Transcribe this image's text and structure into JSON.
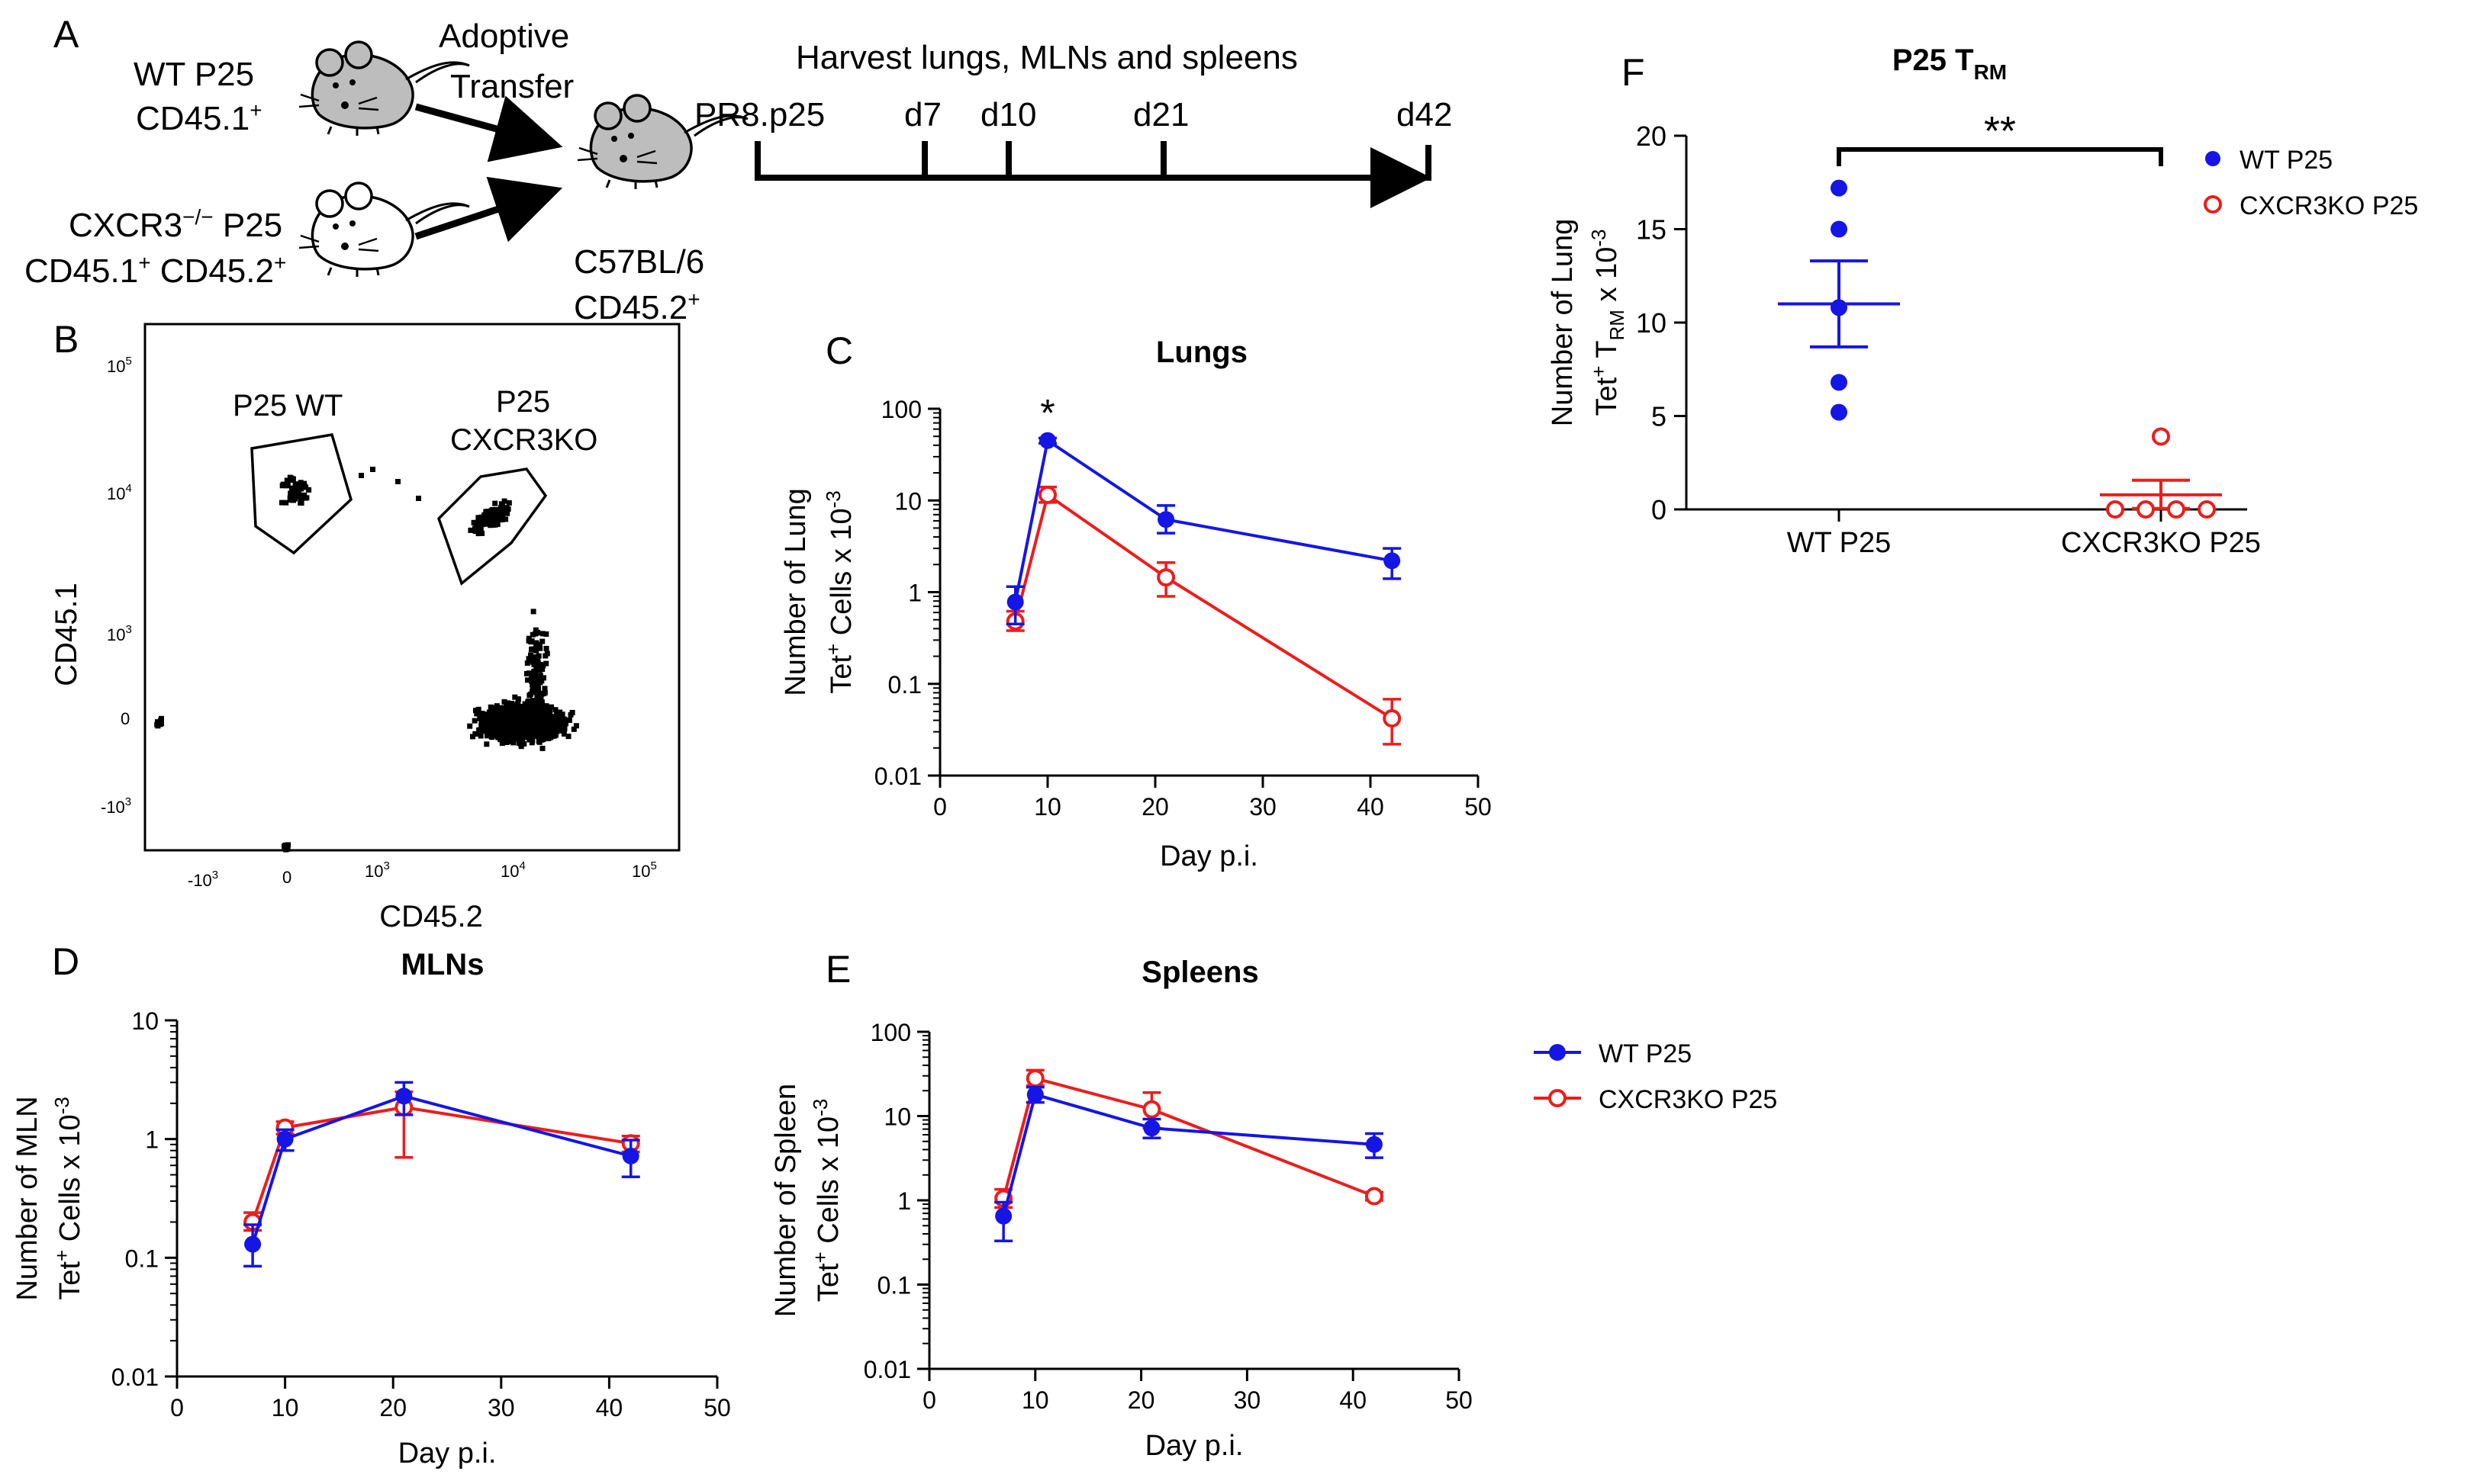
{
  "colors": {
    "wt": "#1515e6",
    "ko": "#ee1c1c",
    "axis": "#000000",
    "mouse_fill": "#bdbdbd"
  },
  "panel_a": {
    "letter": "A",
    "wt_label_1": "WT P25",
    "wt_label_2": "CD45.1",
    "wt_label_2_sup": "+",
    "transfer_1": "Adoptive",
    "transfer_2": "Transfer",
    "ko_label_1": "CXCR3",
    "ko_label_1_sup": "−/−",
    "ko_label_1_tail": " P25",
    "ko_label_2a": "CD45.1",
    "ko_label_2a_sup": "+",
    "ko_label_2b": " CD45.2",
    "ko_label_2b_sup": "+",
    "recipient_1": "C57BL/6",
    "recipient_2": "CD45.2",
    "recipient_2_sup": "+",
    "timeline_title": "Harvest lungs, MLNs and spleens",
    "timeline_start": "PR8.p25",
    "timeline_marks": [
      "d7",
      "d10",
      "d21",
      "d42"
    ]
  },
  "panel_b": {
    "letter": "B",
    "xlabel": "CD45.2",
    "ylabel": "CD45.1",
    "gate_wt": "P25 WT",
    "gate_ko_1": "P25",
    "gate_ko_2": "CXCR3KO",
    "y_ticks": [
      {
        "base": "10",
        "exp": "5"
      },
      {
        "base": "10",
        "exp": "4"
      },
      {
        "base": "10",
        "exp": "3"
      },
      {
        "base": "0",
        "exp": ""
      },
      {
        "base": "-10",
        "exp": "3"
      }
    ],
    "x_ticks": [
      {
        "base": "-10",
        "exp": "3"
      },
      {
        "base": "0",
        "exp": ""
      },
      {
        "base": "10",
        "exp": "3"
      },
      {
        "base": "10",
        "exp": "4"
      },
      {
        "base": "10",
        "exp": "5"
      }
    ]
  },
  "legend": {
    "wt": "WT P25",
    "ko": "CXCR3KO P25"
  },
  "chart_data": [
    {
      "id": "C",
      "letter": "C",
      "type": "line",
      "yscale": "log",
      "title": "Lungs",
      "xlabel": "Day p.i.",
      "ylabel_1": "Number of Lung",
      "ylabel_2": "Tet",
      "ylabel_2_sup": "+",
      "ylabel_2_tail": " Cells x 10",
      "ylabel_2_exp": "-3",
      "xlim": [
        0,
        50
      ],
      "ylim": [
        0.01,
        100
      ],
      "x_ticks": [
        0,
        10,
        20,
        30,
        40,
        50
      ],
      "y_ticks": [
        0.01,
        0.1,
        1,
        10,
        100
      ],
      "y_tick_labels": [
        "0.01",
        "0.1",
        "1",
        "10",
        "100"
      ],
      "annotation": {
        "text": "*",
        "x": 10
      },
      "series": [
        {
          "name": "WT P25",
          "x": [
            7,
            10,
            21,
            42
          ],
          "y": [
            0.78,
            45,
            6.2,
            2.2
          ],
          "err_low": [
            0.45,
            42,
            4.4,
            1.4
          ],
          "err_high": [
            1.15,
            48,
            8.8,
            3.0
          ]
        },
        {
          "name": "CXCR3KO P25",
          "x": [
            7,
            10,
            21,
            42
          ],
          "y": [
            0.48,
            11.5,
            1.45,
            0.042
          ],
          "err_low": [
            0.38,
            9.5,
            0.9,
            0.022
          ],
          "err_high": [
            0.62,
            14,
            2.1,
            0.068
          ]
        }
      ]
    },
    {
      "id": "D",
      "letter": "D",
      "type": "line",
      "yscale": "log",
      "title": "MLNs",
      "xlabel": "Day p.i.",
      "ylabel_1": "Number of MLN",
      "ylabel_2": "Tet",
      "ylabel_2_sup": "+",
      "ylabel_2_tail": " Cells x 10",
      "ylabel_2_exp": "-3",
      "xlim": [
        0,
        50
      ],
      "ylim": [
        0.01,
        10
      ],
      "x_ticks": [
        0,
        10,
        20,
        30,
        40,
        50
      ],
      "y_ticks": [
        0.01,
        0.1,
        1,
        10
      ],
      "y_tick_labels": [
        "0.01",
        "0.1",
        "1",
        "10"
      ],
      "series": [
        {
          "name": "WT P25",
          "x": [
            7,
            10,
            21,
            42
          ],
          "y": [
            0.13,
            1.0,
            2.3,
            0.72
          ],
          "err_low": [
            0.085,
            0.8,
            1.6,
            0.48
          ],
          "err_high": [
            0.19,
            1.2,
            3.0,
            0.98
          ]
        },
        {
          "name": "CXCR3KO P25",
          "x": [
            7,
            10,
            21,
            42
          ],
          "y": [
            0.2,
            1.25,
            1.85,
            0.92
          ],
          "err_low": [
            0.17,
            1.1,
            0.7,
            0.78
          ],
          "err_high": [
            0.24,
            1.4,
            2.5,
            1.06
          ]
        }
      ]
    },
    {
      "id": "E",
      "letter": "E",
      "type": "line",
      "yscale": "log",
      "title": "Spleens",
      "xlabel": "Day p.i.",
      "ylabel_1": "Number of Spleen",
      "ylabel_2": "Tet",
      "ylabel_2_sup": "+",
      "ylabel_2_tail": " Cells x 10",
      "ylabel_2_exp": "-3",
      "xlim": [
        0,
        50
      ],
      "ylim": [
        0.01,
        100
      ],
      "x_ticks": [
        0,
        10,
        20,
        30,
        40,
        50
      ],
      "y_ticks": [
        0.01,
        0.1,
        1,
        10,
        100
      ],
      "y_tick_labels": [
        "0.01",
        "0.1",
        "1",
        "10",
        "100"
      ],
      "series": [
        {
          "name": "WT P25",
          "x": [
            7,
            10,
            21,
            42
          ],
          "y": [
            0.65,
            18,
            7.2,
            4.6
          ],
          "err_low": [
            0.33,
            14.5,
            5.5,
            3.2
          ],
          "err_high": [
            0.95,
            22,
            9.2,
            6.2
          ]
        },
        {
          "name": "CXCR3KO P25",
          "x": [
            7,
            10,
            21,
            42
          ],
          "y": [
            1.05,
            28,
            12,
            1.12
          ],
          "err_low": [
            0.82,
            23,
            7.2,
            1.0
          ],
          "err_high": [
            1.35,
            35,
            19,
            1.25
          ]
        }
      ]
    },
    {
      "id": "F",
      "letter": "F",
      "type": "scatter",
      "yscale": "linear",
      "title": "P25 T",
      "title_sub": "RM",
      "ylabel_1": "Number of Lung",
      "ylabel_2": "Tet",
      "ylabel_2_sup": "+",
      "ylabel_2_mid": " T",
      "ylabel_2_sub": "RM",
      "ylabel_2_tail": " x 10",
      "ylabel_2_exp": "-3",
      "ylim": [
        0,
        20
      ],
      "y_ticks": [
        0,
        5,
        10,
        15,
        20
      ],
      "y_tick_labels": [
        "0",
        "5",
        "10",
        "15",
        "20"
      ],
      "categories": [
        "WT P25",
        "CXCR3KO P25"
      ],
      "significance": "**",
      "groups": [
        {
          "name": "WT P25",
          "values": [
            17.2,
            15.0,
            10.8,
            6.8,
            5.2
          ],
          "mean": 11.0,
          "sem_low": 8.7,
          "sem_high": 13.3
        },
        {
          "name": "CXCR3KO P25",
          "values": [
            3.9,
            0.0,
            0.0,
            0.0,
            0.0
          ],
          "mean": 0.78,
          "sem_low": 0.05,
          "sem_high": 1.56
        }
      ]
    }
  ]
}
